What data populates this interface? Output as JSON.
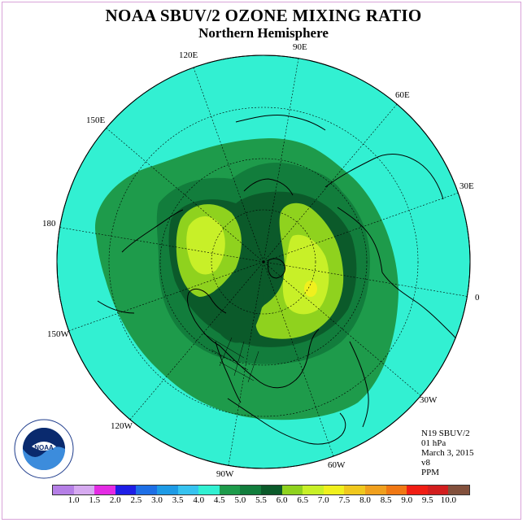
{
  "title": "NOAA SBUV/2 OZONE MIXING RATIO",
  "subtitle": "Northern Hemisphere",
  "longitude_labels": {
    "e90": "90E",
    "e60": "60E",
    "e30": "30E",
    "zero": "0",
    "w30": "30W",
    "w60": "60W",
    "w90": "90W",
    "w120": "120W",
    "w150": "150W",
    "d180": "180",
    "e150": "150E",
    "e120": "120E"
  },
  "info": {
    "satellite": "N19 SBUV/2",
    "level": "01 hPa",
    "date": "March 3, 2015",
    "version": "v8",
    "units": "PPM"
  },
  "logo_text": "NOAA",
  "colorbar": {
    "colors": [
      "#b57fe6",
      "#d6aaf0",
      "#e42be4",
      "#1e1ee6",
      "#1e6fe6",
      "#1e9be6",
      "#37c3f0",
      "#32f0d2",
      "#1e9b4b",
      "#127d3c",
      "#0b5a2a",
      "#8fd21e",
      "#c8f028",
      "#f0f01e",
      "#f0c81e",
      "#f0a01e",
      "#f07814",
      "#f01e14",
      "#d21e1e",
      "#82503c"
    ],
    "ticks": [
      "1.0",
      "1.5",
      "2.0",
      "2.5",
      "3.0",
      "3.5",
      "4.0",
      "4.5",
      "5.0",
      "5.5",
      "6.0",
      "6.5",
      "7.0",
      "7.5",
      "8.0",
      "8.5",
      "9.0",
      "9.5",
      "10.0"
    ]
  }
}
